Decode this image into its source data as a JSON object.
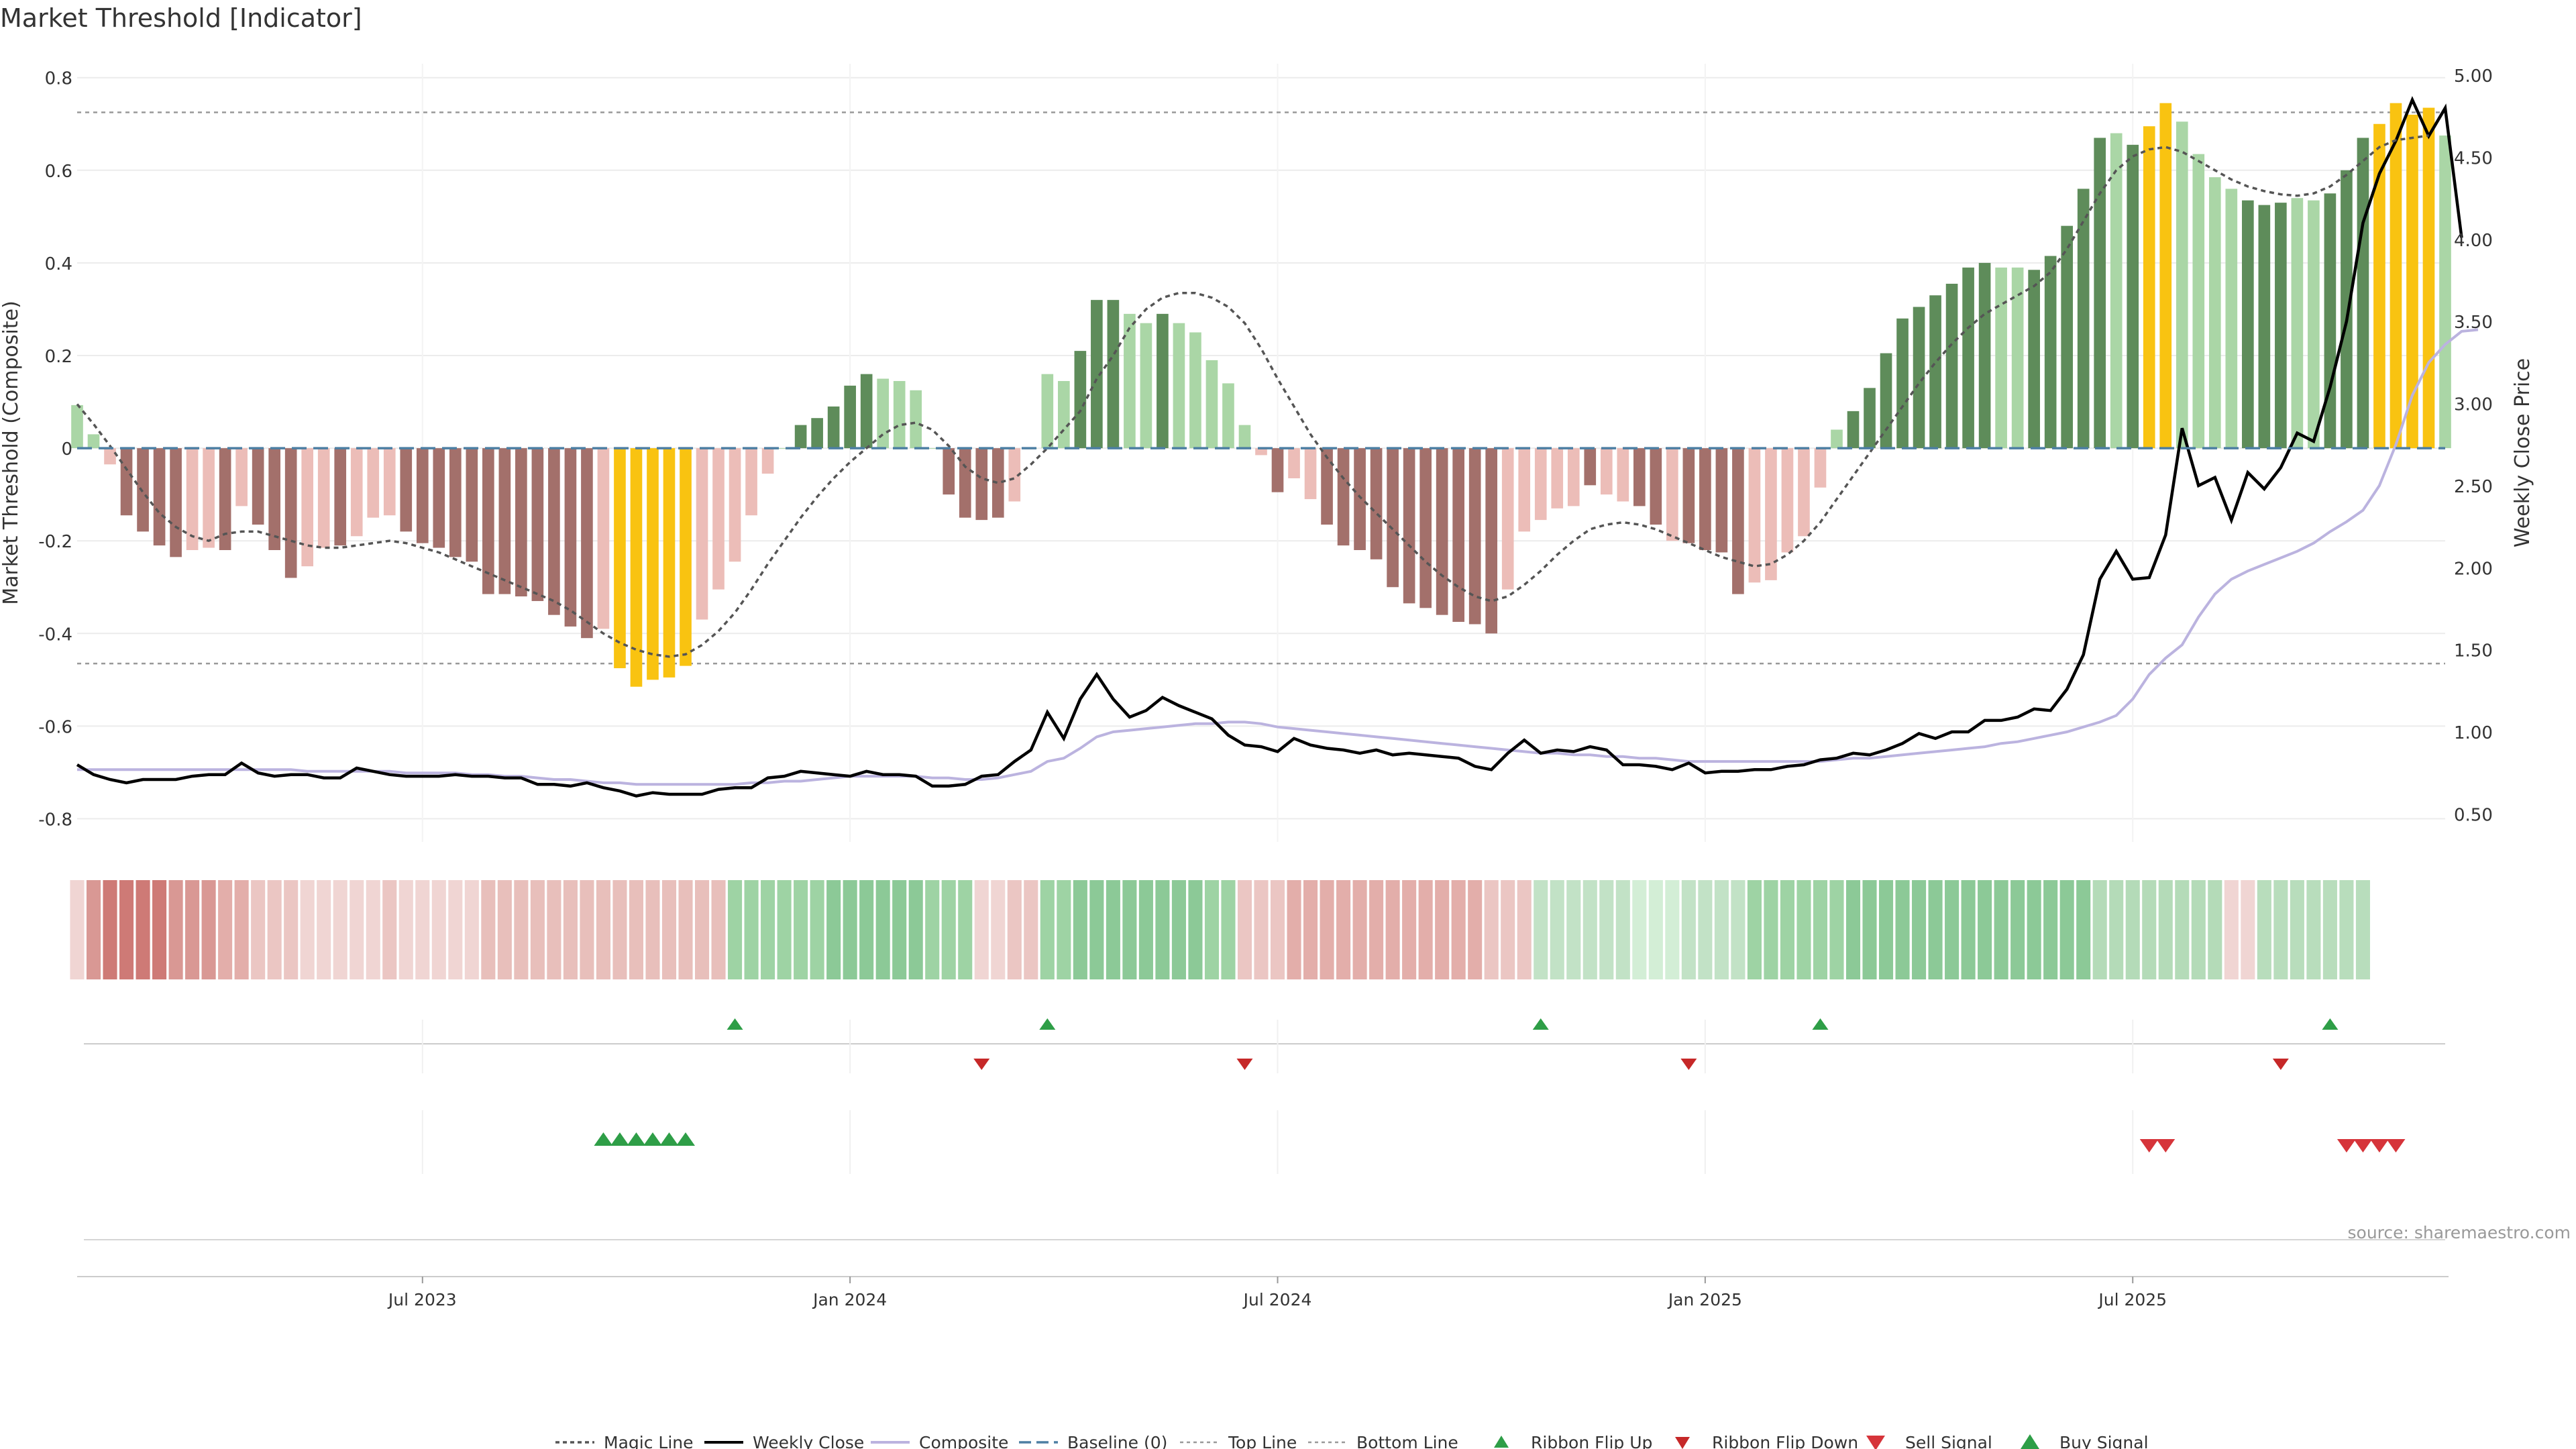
{
  "title": "Market Threshold [Indicator]",
  "source": "source: sharemaestro.com",
  "colors": {
    "strong_up": "#5e8c5a",
    "weak_up": "#aad6a6",
    "strong_down": "#a3706b",
    "weak_down": "#ecbdb8",
    "extreme": "#f9c311",
    "weekly_close": "#000000",
    "composite": "#bbb3df",
    "magic": "#555555",
    "baseline": "#4d7fa3",
    "top_bottom": "#999999",
    "buy": "#2e9e47",
    "sell": "#d6343a",
    "ribbon_flip_down": "#c62828"
  },
  "chart_data": {
    "type": "bar",
    "xlabel": "",
    "ylabel": "Market Threshold (Composite)",
    "y2label": "Weekly Close Price",
    "ylim": [
      -0.85,
      0.83
    ],
    "y2lim": [
      0.33,
      5.07
    ],
    "yticks": [
      "0.8",
      "0.6",
      "0.4",
      "0.2",
      "0",
      "-0.2",
      "-0.4",
      "-0.6",
      "-0.8"
    ],
    "y2ticks": [
      "5.00",
      "4.50",
      "4.00",
      "3.50",
      "3.00",
      "2.50",
      "2.00",
      "1.50",
      "1.00",
      "0.50"
    ],
    "x_ticks": [
      {
        "label": "Jul 2023",
        "week": 21
      },
      {
        "label": "Jan 2024",
        "week": 47
      },
      {
        "label": "Jul 2024",
        "week": 73
      },
      {
        "label": "Jan 2025",
        "week": 99
      },
      {
        "label": "Jul 2025",
        "week": 125
      }
    ],
    "top_line": 0.725,
    "bottom_line": -0.465,
    "baseline": 0,
    "composite": [
      0.093,
      0.03,
      -0.035,
      -0.145,
      -0.18,
      -0.21,
      -0.235,
      -0.22,
      -0.215,
      -0.22,
      -0.125,
      -0.165,
      -0.22,
      -0.28,
      -0.255,
      -0.215,
      -0.21,
      -0.19,
      -0.15,
      -0.145,
      -0.18,
      -0.205,
      -0.215,
      -0.235,
      -0.245,
      -0.315,
      -0.315,
      -0.32,
      -0.33,
      -0.36,
      -0.385,
      -0.41,
      -0.39,
      -0.475,
      -0.515,
      -0.5,
      -0.495,
      -0.47,
      -0.37,
      -0.305,
      -0.245,
      -0.145,
      -0.055,
      0,
      0.05,
      0.065,
      0.09,
      0.135,
      0.16,
      0.15,
      0.145,
      0.125,
      0,
      -0.1,
      -0.15,
      -0.155,
      -0.15,
      -0.115,
      0,
      0.16,
      0.145,
      0.21,
      0.32,
      0.32,
      0.29,
      0.27,
      0.29,
      0.27,
      0.25,
      0.19,
      0.14,
      0.05,
      -0.015,
      -0.095,
      -0.065,
      -0.11,
      -0.165,
      -0.21,
      -0.22,
      -0.24,
      -0.3,
      -0.335,
      -0.345,
      -0.36,
      -0.375,
      -0.38,
      -0.4,
      -0.305,
      -0.18,
      -0.155,
      -0.13,
      -0.125,
      -0.08,
      -0.1,
      -0.115,
      -0.125,
      -0.165,
      -0.2,
      -0.205,
      -0.22,
      -0.225,
      -0.315,
      -0.29,
      -0.285,
      -0.225,
      -0.19,
      -0.085,
      0.04,
      0.08,
      0.13,
      0.205,
      0.28,
      0.305,
      0.33,
      0.355,
      0.39,
      0.4,
      0.39,
      0.39,
      0.385,
      0.415,
      0.48,
      0.56,
      0.67,
      0.68,
      0.655,
      0.695,
      0.745,
      0.705,
      0.635,
      0.585,
      0.56,
      0.535,
      0.525,
      0.53,
      0.54,
      0.535,
      0.55,
      0.6,
      0.67,
      0.7,
      0.745,
      0.72,
      0.735,
      0.675
    ],
    "categories_bar": [
      "weak_up",
      "weak_up",
      "weak_down",
      "strong_down",
      "strong_down",
      "strong_down",
      "strong_down",
      "weak_down",
      "weak_down",
      "strong_down",
      "weak_down",
      "strong_down",
      "strong_down",
      "strong_down",
      "weak_down",
      "weak_down",
      "strong_down",
      "weak_down",
      "weak_down",
      "weak_down",
      "strong_down",
      "strong_down",
      "strong_down",
      "strong_down",
      "strong_down",
      "strong_down",
      "strong_down",
      "strong_down",
      "strong_down",
      "strong_down",
      "strong_down",
      "strong_down",
      "weak_down",
      "extreme",
      "extreme",
      "extreme",
      "extreme",
      "extreme",
      "weak_down",
      "weak_down",
      "weak_down",
      "weak_down",
      "weak_down",
      "weak_up",
      "strong_up",
      "strong_up",
      "strong_up",
      "strong_up",
      "strong_up",
      "weak_up",
      "weak_up",
      "weak_up",
      "weak_up",
      "strong_down",
      "strong_down",
      "strong_down",
      "strong_down",
      "weak_down",
      "weak_up",
      "weak_up",
      "weak_up",
      "strong_up",
      "strong_up",
      "strong_up",
      "weak_up",
      "weak_up",
      "strong_up",
      "weak_up",
      "weak_up",
      "weak_up",
      "weak_up",
      "weak_up",
      "weak_down",
      "strong_down",
      "weak_down",
      "weak_down",
      "strong_down",
      "strong_down",
      "strong_down",
      "strong_down",
      "strong_down",
      "strong_down",
      "strong_down",
      "strong_down",
      "strong_down",
      "strong_down",
      "strong_down",
      "weak_down",
      "weak_down",
      "weak_down",
      "weak_down",
      "weak_down",
      "strong_down",
      "weak_down",
      "weak_down",
      "strong_down",
      "strong_down",
      "weak_down",
      "strong_down",
      "strong_down",
      "strong_down",
      "strong_down",
      "weak_down",
      "weak_down",
      "weak_down",
      "weak_down",
      "weak_down",
      "weak_up",
      "strong_up",
      "strong_up",
      "strong_up",
      "strong_up",
      "strong_up",
      "strong_up",
      "strong_up",
      "strong_up",
      "strong_up",
      "weak_up",
      "weak_up",
      "strong_up",
      "strong_up",
      "strong_up",
      "strong_up",
      "strong_up",
      "weak_up",
      "strong_up",
      "extreme",
      "extreme",
      "weak_up",
      "weak_up",
      "weak_up",
      "weak_up",
      "strong_up",
      "strong_up",
      "strong_up",
      "weak_up",
      "weak_up",
      "strong_up",
      "strong_up",
      "strong_up",
      "extreme",
      "extreme",
      "extreme",
      "extreme",
      "weak_up"
    ],
    "magic_line": [
      0.095,
      0.052,
      0.005,
      -0.045,
      -0.095,
      -0.14,
      -0.17,
      -0.19,
      -0.2,
      -0.185,
      -0.18,
      -0.18,
      -0.19,
      -0.2,
      -0.21,
      -0.215,
      -0.215,
      -0.21,
      -0.205,
      -0.2,
      -0.205,
      -0.215,
      -0.225,
      -0.24,
      -0.255,
      -0.27,
      -0.285,
      -0.3,
      -0.315,
      -0.33,
      -0.35,
      -0.375,
      -0.4,
      -0.42,
      -0.435,
      -0.445,
      -0.45,
      -0.445,
      -0.425,
      -0.395,
      -0.355,
      -0.305,
      -0.25,
      -0.2,
      -0.15,
      -0.105,
      -0.065,
      -0.03,
      0,
      0.03,
      0.05,
      0.055,
      0.04,
      0.005,
      -0.04,
      -0.065,
      -0.075,
      -0.065,
      -0.035,
      0,
      0.04,
      0.08,
      0.15,
      0.2,
      0.26,
      0.3,
      0.325,
      0.335,
      0.335,
      0.325,
      0.305,
      0.27,
      0.215,
      0.15,
      0.09,
      0.03,
      -0.02,
      -0.065,
      -0.105,
      -0.14,
      -0.175,
      -0.21,
      -0.245,
      -0.275,
      -0.3,
      -0.32,
      -0.33,
      -0.32,
      -0.295,
      -0.265,
      -0.23,
      -0.2,
      -0.175,
      -0.165,
      -0.16,
      -0.165,
      -0.175,
      -0.19,
      -0.205,
      -0.22,
      -0.235,
      -0.245,
      -0.255,
      -0.25,
      -0.23,
      -0.2,
      -0.16,
      -0.11,
      -0.06,
      -0.01,
      0.04,
      0.09,
      0.14,
      0.185,
      0.225,
      0.26,
      0.29,
      0.31,
      0.33,
      0.35,
      0.38,
      0.43,
      0.49,
      0.55,
      0.6,
      0.63,
      0.645,
      0.65,
      0.64,
      0.62,
      0.6,
      0.58,
      0.565,
      0.555,
      0.548,
      0.545,
      0.55,
      0.565,
      0.59,
      0.62,
      0.65,
      0.665,
      0.67,
      0.675
    ],
    "weekly_close": [
      0.8,
      0.74,
      0.71,
      0.69,
      0.71,
      0.71,
      0.71,
      0.73,
      0.74,
      0.74,
      0.81,
      0.75,
      0.73,
      0.74,
      0.74,
      0.72,
      0.72,
      0.78,
      0.76,
      0.74,
      0.73,
      0.73,
      0.73,
      0.74,
      0.73,
      0.73,
      0.72,
      0.72,
      0.68,
      0.68,
      0.67,
      0.69,
      0.66,
      0.64,
      0.61,
      0.63,
      0.62,
      0.62,
      0.62,
      0.65,
      0.66,
      0.66,
      0.72,
      0.73,
      0.76,
      0.75,
      0.74,
      0.73,
      0.76,
      0.74,
      0.74,
      0.73,
      0.67,
      0.67,
      0.68,
      0.73,
      0.74,
      0.82,
      0.89,
      1.12,
      0.96,
      1.2,
      1.35,
      1.2,
      1.09,
      1.13,
      1.21,
      1.16,
      1.12,
      1.08,
      0.98,
      0.92,
      0.91,
      0.88,
      0.96,
      0.92,
      0.9,
      0.89,
      0.87,
      0.89,
      0.86,
      0.87,
      0.86,
      0.85,
      0.84,
      0.79,
      0.77,
      0.87,
      0.95,
      0.87,
      0.89,
      0.88,
      0.91,
      0.89,
      0.8,
      0.8,
      0.79,
      0.77,
      0.81,
      0.75,
      0.76,
      0.76,
      0.77,
      0.77,
      0.79,
      0.8,
      0.83,
      0.84,
      0.87,
      0.86,
      0.89,
      0.93,
      0.99,
      0.96,
      1.0,
      1.0,
      1.07,
      1.07,
      1.09,
      1.14,
      1.13,
      1.26,
      1.47,
      1.93,
      2.1,
      1.93,
      1.94,
      2.2,
      2.85,
      2.5,
      2.55,
      2.29,
      2.58,
      2.48,
      2.61,
      2.82,
      2.77,
      3.1,
      3.5,
      4.1,
      4.4,
      4.6,
      4.85,
      4.63,
      4.8,
      4.01
    ],
    "composite_smooth": [
      0.77,
      0.77,
      0.77,
      0.77,
      0.77,
      0.77,
      0.77,
      0.77,
      0.77,
      0.77,
      0.77,
      0.77,
      0.77,
      0.77,
      0.76,
      0.76,
      0.76,
      0.76,
      0.76,
      0.76,
      0.75,
      0.75,
      0.75,
      0.75,
      0.74,
      0.74,
      0.73,
      0.73,
      0.72,
      0.71,
      0.71,
      0.7,
      0.69,
      0.69,
      0.68,
      0.68,
      0.68,
      0.68,
      0.68,
      0.68,
      0.68,
      0.69,
      0.69,
      0.7,
      0.7,
      0.71,
      0.72,
      0.73,
      0.73,
      0.73,
      0.73,
      0.73,
      0.72,
      0.72,
      0.71,
      0.71,
      0.72,
      0.74,
      0.76,
      0.82,
      0.84,
      0.9,
      0.97,
      1.0,
      1.01,
      1.02,
      1.03,
      1.04,
      1.05,
      1.05,
      1.06,
      1.06,
      1.05,
      1.03,
      1.02,
      1.01,
      1.0,
      0.99,
      0.98,
      0.97,
      0.96,
      0.95,
      0.94,
      0.93,
      0.92,
      0.91,
      0.9,
      0.89,
      0.88,
      0.87,
      0.87,
      0.86,
      0.86,
      0.85,
      0.85,
      0.84,
      0.84,
      0.83,
      0.82,
      0.82,
      0.82,
      0.82,
      0.82,
      0.82,
      0.82,
      0.82,
      0.82,
      0.83,
      0.84,
      0.84,
      0.85,
      0.86,
      0.87,
      0.88,
      0.89,
      0.9,
      0.91,
      0.93,
      0.94,
      0.96,
      0.98,
      1.0,
      1.03,
      1.06,
      1.1,
      1.2,
      1.35,
      1.45,
      1.53,
      1.7,
      1.84,
      1.93,
      1.98,
      2.02,
      2.06,
      2.1,
      2.15,
      2.22,
      2.28,
      2.35,
      2.5,
      2.75,
      3.05,
      3.25,
      3.36,
      3.44,
      3.45
    ],
    "ribbon": [
      {
        "c": "#f0d5d3",
        "n": 1
      },
      {
        "c": "#d99894",
        "n": 1
      },
      {
        "c": "#ce7a76",
        "n": 4
      },
      {
        "c": "#d99894",
        "n": 3
      },
      {
        "c": "#e3aeaa",
        "n": 2
      },
      {
        "c": "#ebc6c3",
        "n": 3
      },
      {
        "c": "#f0d5d3",
        "n": 5
      },
      {
        "c": "#ebc6c3",
        "n": 1
      },
      {
        "c": "#f0d5d3",
        "n": 5
      },
      {
        "c": "#e8bfbb",
        "n": 15
      },
      {
        "c": "#9ed3a4",
        "n": 6
      },
      {
        "c": "#8cc997",
        "n": 6
      },
      {
        "c": "#9ed3a4",
        "n": 3
      },
      {
        "c": "#f0d5d3",
        "n": 2
      },
      {
        "c": "#ebc6c3",
        "n": 2
      },
      {
        "c": "#9ed3a4",
        "n": 2
      },
      {
        "c": "#8cc997",
        "n": 8
      },
      {
        "c": "#9ed3a4",
        "n": 2
      },
      {
        "c": "#ebc6c3",
        "n": 3
      },
      {
        "c": "#e3aeaa",
        "n": 12
      },
      {
        "c": "#ebc6c3",
        "n": 3
      },
      {
        "c": "#c2e2c6",
        "n": 6
      },
      {
        "c": "#d3eed6",
        "n": 3
      },
      {
        "c": "#c2e2c6",
        "n": 4
      },
      {
        "c": "#9ed3a4",
        "n": 6
      },
      {
        "c": "#8cc997",
        "n": 15
      },
      {
        "c": "#b4dbb8",
        "n": 8
      },
      {
        "c": "#f0d5d3",
        "n": 2
      },
      {
        "c": "#b8ddbc",
        "n": 7
      }
    ],
    "ribbon_flip_up_weeks": [
      40,
      59,
      89,
      106,
      137
    ],
    "ribbon_flip_down_weeks": [
      55,
      71,
      98,
      134
    ],
    "buy_signal_weeks": [
      32,
      33,
      34,
      35,
      36,
      37
    ],
    "sell_signal_weeks": [
      126,
      127,
      138,
      139,
      140,
      141
    ],
    "legend": [
      {
        "label": "Magic Line",
        "key": "magic"
      },
      {
        "label": "Weekly Close",
        "key": "close"
      },
      {
        "label": "Composite",
        "key": "composite"
      },
      {
        "label": "Baseline (0)",
        "key": "baseline"
      },
      {
        "label": "Top Line",
        "key": "top"
      },
      {
        "label": "Bottom Line",
        "key": "bottom"
      },
      {
        "label": "Ribbon Flip Up",
        "key": "flipup"
      },
      {
        "label": "Ribbon Flip Down",
        "key": "flipdown"
      },
      {
        "label": "Sell Signal",
        "key": "sell"
      },
      {
        "label": "Buy Signal",
        "key": "buy"
      }
    ]
  }
}
